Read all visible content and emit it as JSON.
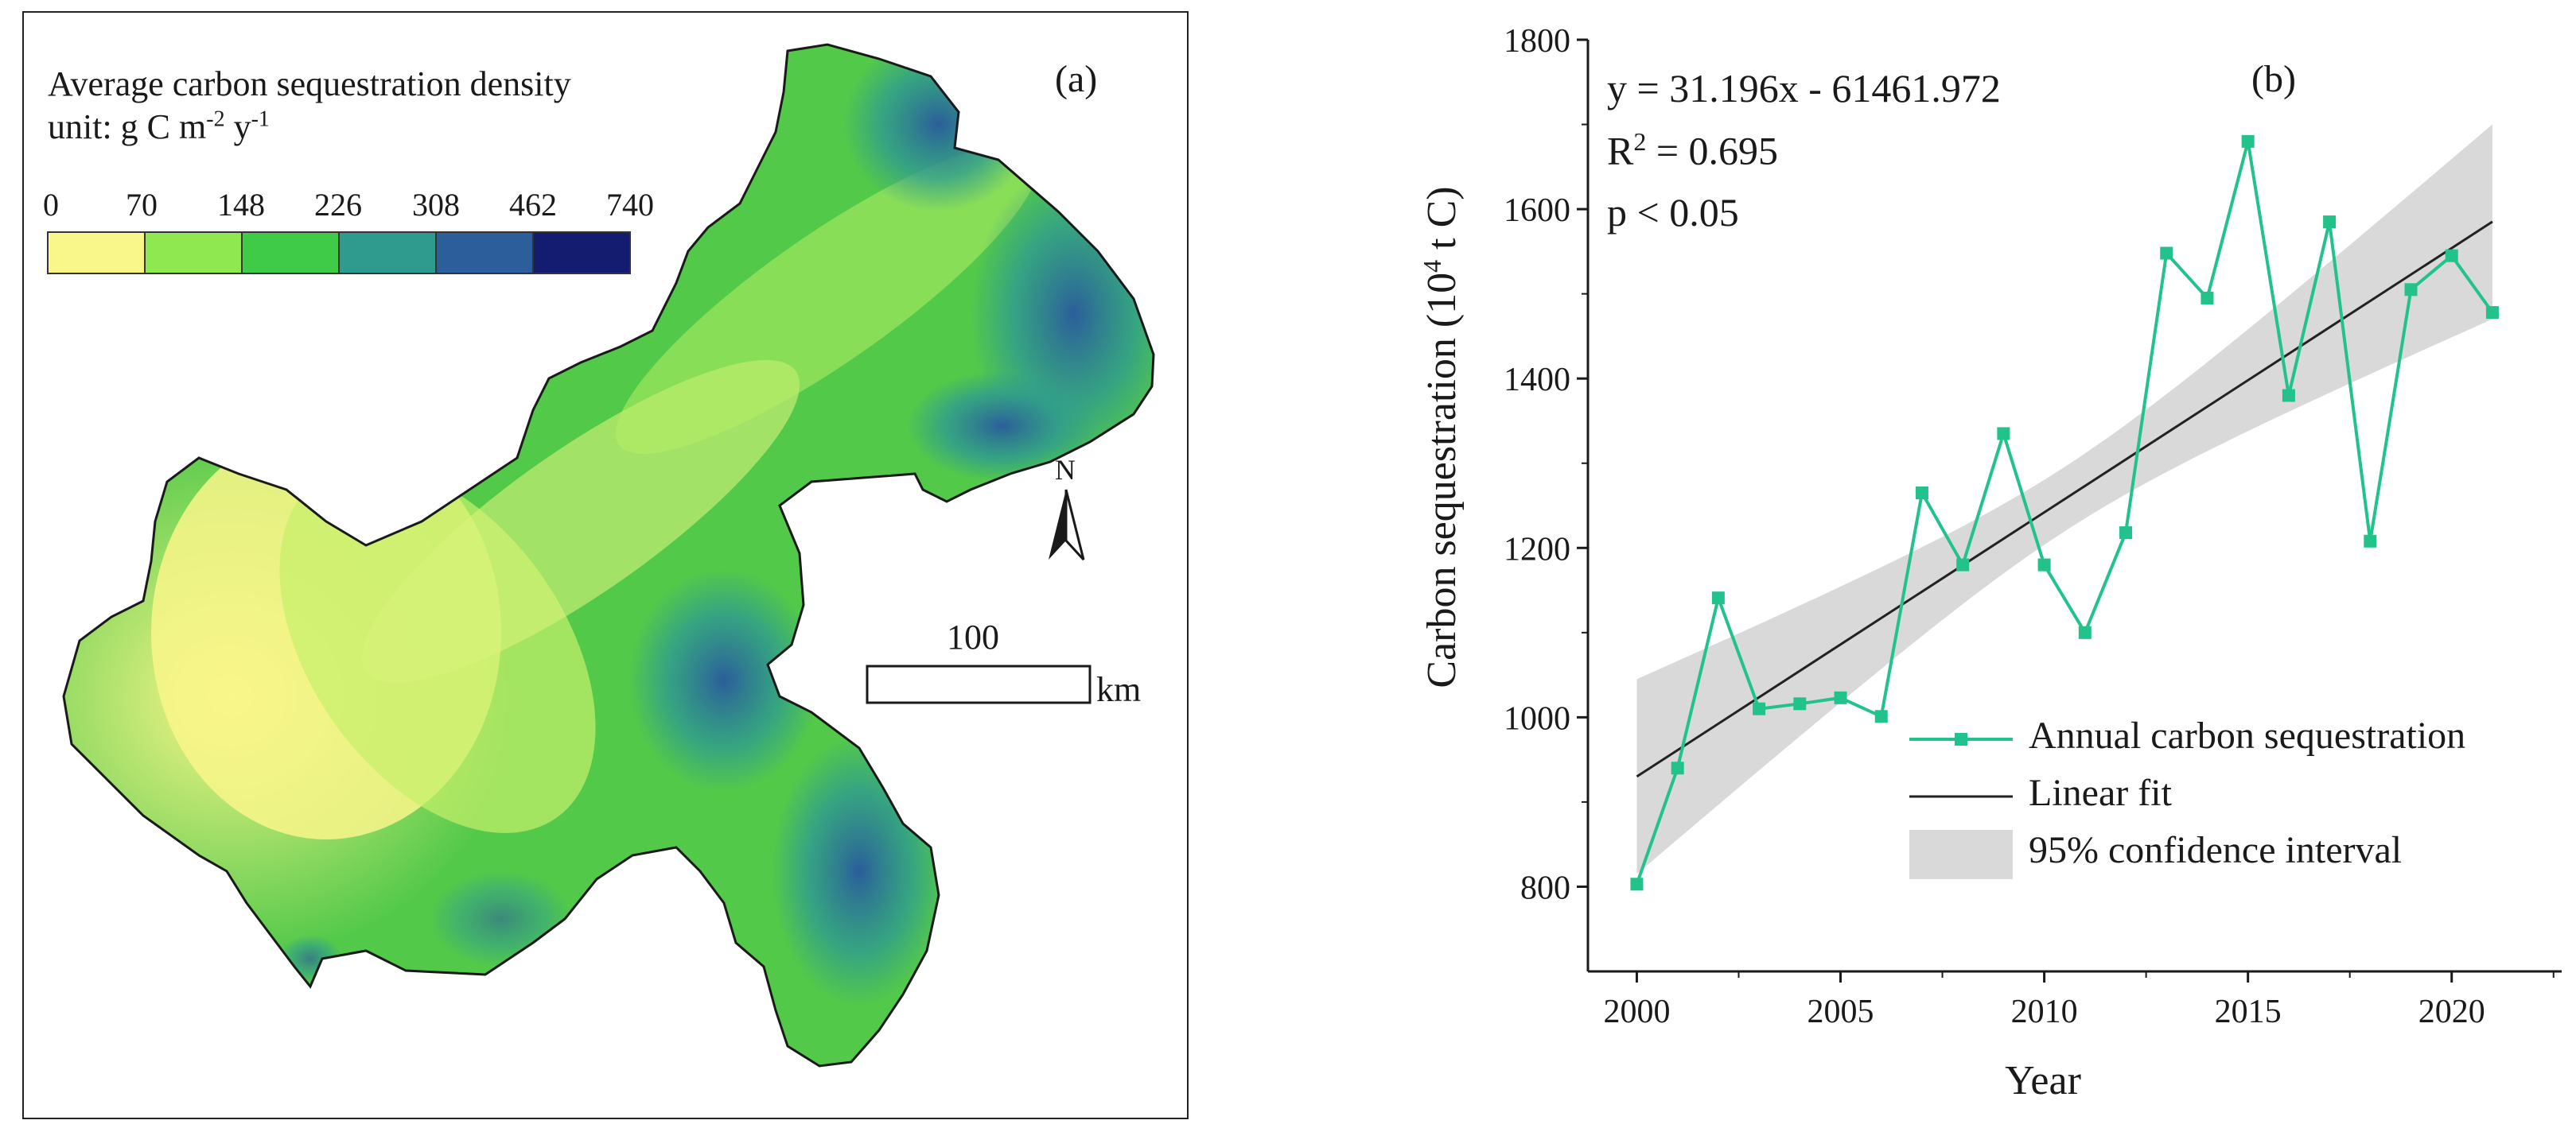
{
  "panel_a": {
    "tag": "(a)",
    "legend": {
      "title": "Average carbon sequestration density",
      "unit_prefix": "unit: g C m",
      "unit_exp1": "-2",
      "unit_mid": " y",
      "unit_exp2": "-1",
      "ticks": [
        "0",
        "70",
        "148",
        "226",
        "308",
        "462",
        "740"
      ],
      "colors": [
        "#f9f68a",
        "#8fe84f",
        "#3fca47",
        "#2f9b8f",
        "#2b5e9b",
        "#141c6f"
      ]
    },
    "north_label": "N",
    "scale_label": "100",
    "scale_unit": "km"
  },
  "panel_b": {
    "tag": "(b)",
    "equation": "y = 31.196x - 61461.972",
    "r2_prefix": "R",
    "r2_exp": "2",
    "r2_value": " = 0.695",
    "pvalue": "p < 0.05",
    "ylabel_prefix": "Carbon sequestration (10",
    "ylabel_exp": "4",
    "ylabel_suffix": " t C)",
    "xlabel": "Year",
    "legend": {
      "series": "Annual carbon sequestration",
      "fit": "Linear fit",
      "ci": "95% confidence interval"
    },
    "colors": {
      "series": "#22c38a",
      "fit": "#222222",
      "ci": "#d9d9d9"
    }
  },
  "chart_data": {
    "type": "line",
    "x": [
      2000,
      2001,
      2002,
      2003,
      2004,
      2005,
      2006,
      2007,
      2008,
      2009,
      2010,
      2011,
      2012,
      2013,
      2014,
      2015,
      2016,
      2017,
      2018,
      2019,
      2020,
      2021
    ],
    "series": [
      {
        "name": "Annual carbon sequestration",
        "values": [
          803,
          940,
          1141,
          1010,
          1016,
          1023,
          1001,
          1265,
          1180,
          1335,
          1180,
          1100,
          1218,
          1548,
          1495,
          1680,
          1380,
          1585,
          1208,
          1505,
          1545,
          1478
        ]
      }
    ],
    "fit": {
      "slope": 31.196,
      "intercept": -61461.972
    },
    "ci_halfwidth": {
      "x": [
        2000,
        2010.5,
        2021
      ],
      "values": [
        115,
        38,
        115
      ]
    },
    "xlabel": "Year",
    "ylabel": "Carbon sequestration (10^4 t C)",
    "xlim": [
      1998.8,
      2022.7
    ],
    "ylim": [
      700,
      1800
    ],
    "xticks": [
      2000,
      2005,
      2010,
      2015,
      2020
    ],
    "yticks": [
      800,
      1000,
      1200,
      1400,
      1600,
      1800
    ],
    "grid": false,
    "legend_position": "bottom-right"
  }
}
